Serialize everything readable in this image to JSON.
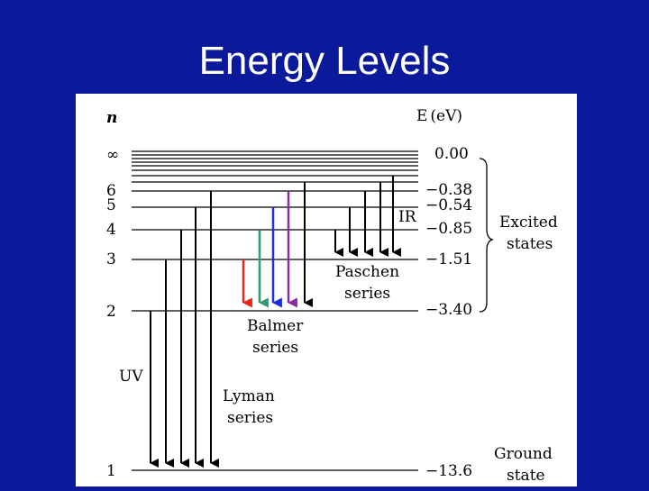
{
  "slide": {
    "title": "Energy Levels"
  },
  "diagram": {
    "n_header": "n",
    "e_header_symbol": "E",
    "e_header_unit": "(eV)",
    "levels": [
      {
        "n": "∞",
        "energy": "0.00"
      },
      {
        "n": "6",
        "energy": "−0.38"
      },
      {
        "n": "5",
        "energy": "−0.54"
      },
      {
        "n": "4",
        "energy": "−0.85"
      },
      {
        "n": "3",
        "energy": "−1.51"
      },
      {
        "n": "2",
        "energy": "−3.40"
      },
      {
        "n": "1",
        "energy": "−13.6"
      }
    ],
    "labels": {
      "ir": "IR",
      "uv": "UV",
      "paschen_1": "Paschen",
      "paschen_2": "series",
      "balmer_1": "Balmer",
      "balmer_2": "series",
      "lyman_1": "Lyman",
      "lyman_2": "series",
      "excited_1": "Excited",
      "excited_2": "states",
      "ground_1": "Ground",
      "ground_2": "state"
    },
    "colors": {
      "background": "#0b199b",
      "balmer_red": "#e8231a",
      "balmer_green": "#2f9b6e",
      "balmer_blue": "#1f2fd6",
      "balmer_purple": "#8a2aa6",
      "line": "#000000"
    }
  }
}
